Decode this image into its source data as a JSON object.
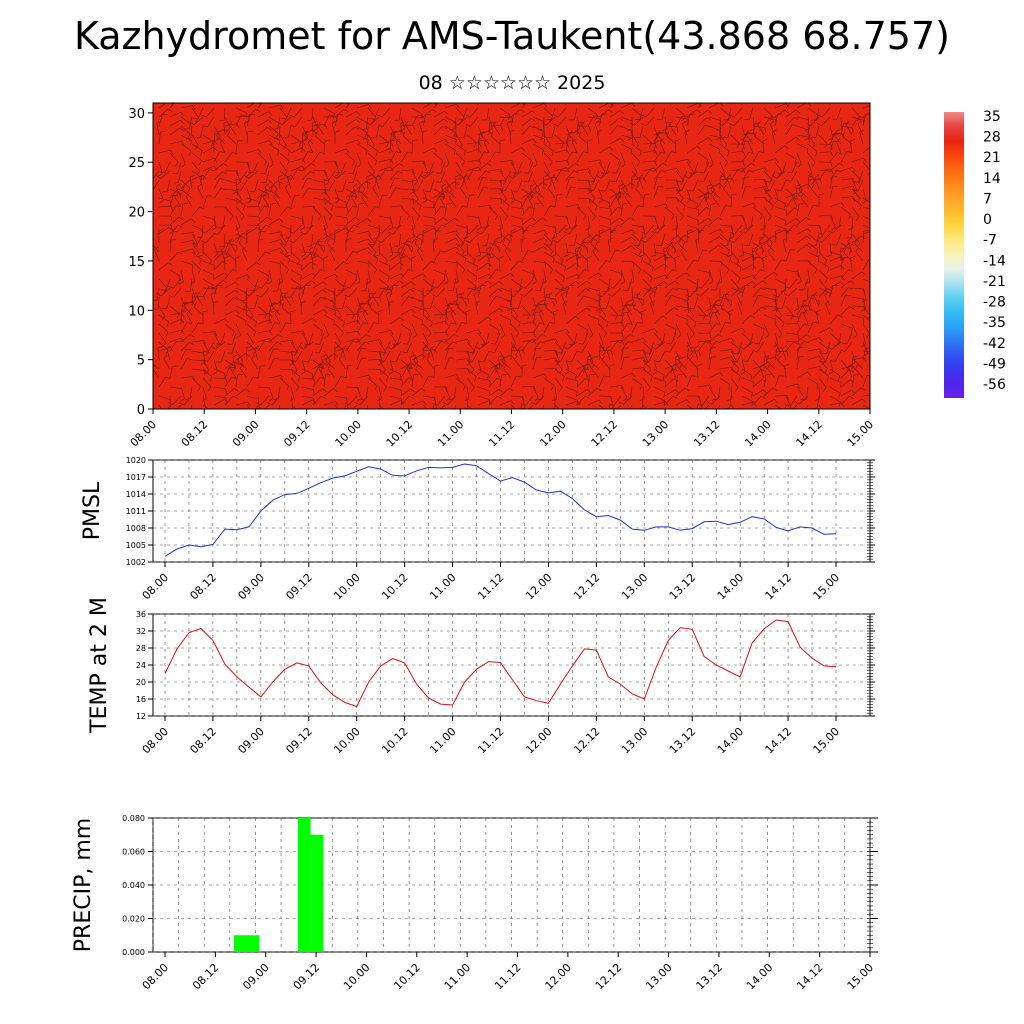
{
  "title": "Kazhydromet for AMS-Taukent(43.868 68.757)",
  "subtitle": "08 ☆☆☆☆☆☆ 2025",
  "time_labels": [
    "08.00",
    "08.12",
    "09.00",
    "09.12",
    "10.00",
    "10.12",
    "11.00",
    "11.12",
    "12.00",
    "12.12",
    "13.00",
    "13.12",
    "14.00",
    "14.12",
    "15.00"
  ],
  "colors": {
    "pmsl_line": "#2233cc",
    "temp_line": "#dd1111",
    "precip_bar": "#00ff00"
  },
  "chart_data": [
    {
      "id": "cross_section",
      "type": "heatmap",
      "y_ticks": [
        0,
        5,
        10,
        15,
        20,
        25,
        30
      ],
      "ylim": [
        0,
        31
      ],
      "colorbar": {
        "labels": [
          "35",
          "28",
          "21",
          "14",
          "7",
          "0",
          "-7",
          "-14",
          "-21",
          "-28",
          "-35",
          "-42",
          "-49",
          "-56"
        ],
        "range": [
          -60,
          38
        ]
      },
      "colorscale": [
        [
          -60,
          "#6a1fe6"
        ],
        [
          -52,
          "#3d2af0"
        ],
        [
          -44,
          "#2f5cf0"
        ],
        [
          -36,
          "#2aa0f5"
        ],
        [
          -28,
          "#38c8f0"
        ],
        [
          -21,
          "#a8dff2"
        ],
        [
          -15,
          "#f0f4e8"
        ],
        [
          -8,
          "#fff19a"
        ],
        [
          0,
          "#ffd233"
        ],
        [
          8,
          "#ffa52a"
        ],
        [
          16,
          "#ff7a12"
        ],
        [
          24,
          "#f63e10"
        ],
        [
          30,
          "#e01a14"
        ],
        [
          38,
          "#ee8a88"
        ]
      ],
      "features": [
        "wind barbs overlay",
        "contour lines"
      ]
    },
    {
      "id": "pmsl",
      "type": "line",
      "ylabel": "PMSL",
      "y_ticks": [
        1002,
        1005,
        1008,
        1011,
        1014,
        1017,
        1020
      ],
      "ylim": [
        1002,
        1020
      ],
      "series": [
        {
          "values": [
            1003.0,
            1004.3,
            1005.0,
            1004.7,
            1005.1,
            1007.8,
            1007.7,
            1008.2,
            1011.0,
            1012.9,
            1013.9,
            1014.1,
            1015.0,
            1016.0,
            1016.8,
            1017.2,
            1018.0,
            1018.8,
            1018.4,
            1017.3,
            1017.2,
            1018.1,
            1018.7,
            1018.6,
            1018.7,
            1019.3,
            1019.0,
            1017.6,
            1016.3,
            1016.9,
            1016.1,
            1014.7,
            1014.2,
            1014.5,
            1013.2,
            1011.2,
            1010.0,
            1010.2,
            1009.4,
            1007.8,
            1007.6,
            1008.2,
            1008.2,
            1007.6,
            1007.9,
            1009.1,
            1009.2,
            1008.6,
            1009.0,
            1010.0,
            1009.6,
            1008.1,
            1007.5,
            1008.2,
            1008.0,
            1006.9,
            1007.0
          ]
        }
      ]
    },
    {
      "id": "temp",
      "type": "line",
      "ylabel": "TEMP at 2 M",
      "y_ticks": [
        12,
        16,
        20,
        24,
        28,
        32,
        36
      ],
      "ylim": [
        12,
        36
      ],
      "series": [
        {
          "values": [
            22.0,
            27.8,
            31.6,
            32.6,
            29.8,
            24.2,
            21.2,
            18.8,
            16.5,
            20.0,
            23.0,
            24.5,
            23.8,
            19.8,
            17.0,
            15.2,
            14.2,
            20.0,
            23.8,
            25.5,
            24.5,
            19.5,
            16.2,
            14.8,
            14.6,
            20.0,
            23.0,
            24.8,
            24.6,
            20.5,
            16.5,
            15.6,
            15.0,
            19.5,
            23.8,
            27.8,
            27.5,
            21.2,
            19.5,
            17.2,
            16.0,
            23.5,
            29.8,
            32.8,
            32.4,
            26.0,
            24.0,
            22.6,
            21.2,
            29.2,
            32.5,
            34.6,
            34.2,
            28.2,
            25.6,
            23.8,
            23.6
          ]
        }
      ]
    },
    {
      "id": "precip",
      "type": "bar",
      "ylabel": "PRECIP, mm",
      "y_ticks": [
        "0.000",
        "0.020",
        "0.040",
        "0.060",
        "0.080"
      ],
      "ylim": [
        0,
        0.08
      ],
      "bars": [
        {
          "start": 6,
          "end": 8,
          "value": 0.01
        },
        {
          "start": 11,
          "end": 12,
          "value": 0.08
        },
        {
          "start": 12,
          "end": 13,
          "value": 0.07
        }
      ]
    }
  ]
}
